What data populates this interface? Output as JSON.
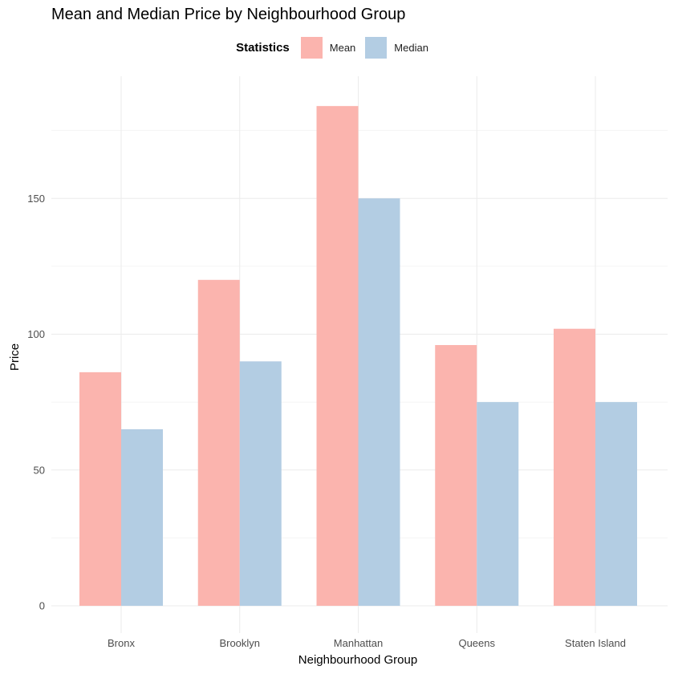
{
  "chart_data": {
    "type": "bar",
    "title": "Mean and Median Price by Neighbourhood Group",
    "xlabel": "Neighbourhood Group",
    "ylabel": "Price",
    "categories": [
      "Bronx",
      "Brooklyn",
      "Manhattan",
      "Queens",
      "Staten Island"
    ],
    "series": [
      {
        "name": "Mean",
        "color": "#FBB4AE",
        "values": [
          86,
          120,
          184,
          96,
          102
        ]
      },
      {
        "name": "Median",
        "color": "#B3CDE3",
        "values": [
          65,
          90,
          150,
          75,
          75
        ]
      }
    ],
    "ylim": [
      0,
      190
    ],
    "yticks": [
      0,
      50,
      100,
      150
    ],
    "grid": true,
    "legend": {
      "title": "Statistics",
      "position": "top"
    }
  }
}
